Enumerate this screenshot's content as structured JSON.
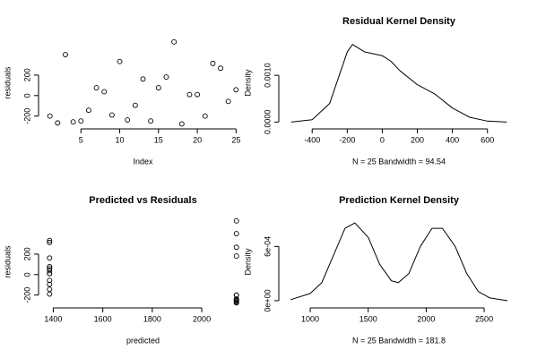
{
  "chart_data": [
    {
      "type": "scatter",
      "x_label": "Index",
      "y_label": "residuals",
      "x": [
        1,
        2,
        3,
        4,
        5,
        6,
        7,
        8,
        9,
        10,
        11,
        12,
        13,
        14,
        15,
        16,
        17,
        18,
        19,
        20,
        21,
        22,
        23,
        24,
        25
      ],
      "values": [
        -200,
        -267,
        400,
        -257,
        -248,
        -143,
        76,
        38,
        -190,
        333,
        -238,
        -95,
        162,
        -248,
        76,
        181,
        524,
        -276,
        10,
        10,
        -200,
        314,
        267,
        -57,
        57
      ],
      "xlim": [
        0,
        26
      ],
      "xticks": [
        5,
        10,
        15,
        20,
        25
      ],
      "ylim": [
        -290,
        540
      ],
      "yticks": [
        -200,
        0,
        200
      ],
      "color": "#000000"
    },
    {
      "type": "line",
      "title": "Residual Kernel Density",
      "x_label": "N = 25   Bandwidth = 94.54",
      "y_label": "Density",
      "x": [
        -520,
        -400,
        -300,
        -200,
        -170,
        -100,
        0,
        50,
        100,
        200,
        300,
        400,
        500,
        600,
        710
      ],
      "values": [
        0,
        5e-05,
        0.0004,
        0.0015,
        0.00166,
        0.0015,
        0.00142,
        0.0013,
        0.0011,
        0.0008,
        0.0006,
        0.0003,
        0.0001,
        2e-05,
        0
      ],
      "xlim": [
        -570,
        760
      ],
      "xticks": [
        -400,
        -200,
        0,
        200,
        400,
        600
      ],
      "ylim": [
        -7e-05,
        0.00175
      ],
      "yticks": [
        {
          "value": 0,
          "label": "0.0000"
        },
        {
          "value": 0.001,
          "label": "0.0010"
        }
      ],
      "color": "#000000"
    },
    {
      "type": "scatter",
      "title": "Predicted vs Residuals",
      "x_label": "predicted",
      "y_label": "residuals",
      "x": [
        2140,
        2140,
        2140,
        2140,
        2140,
        1385,
        1385,
        1385,
        1385,
        1385,
        2140,
        1385,
        1385,
        2140,
        1385,
        2140,
        2140,
        2140,
        1385,
        1385,
        2140,
        1385,
        2140,
        1385,
        1385
      ],
      "values": [
        -200,
        -267,
        400,
        -257,
        -248,
        -143,
        76,
        38,
        -190,
        333,
        -238,
        -95,
        162,
        -248,
        76,
        181,
        524,
        -276,
        10,
        10,
        -200,
        314,
        267,
        -57,
        57
      ],
      "xlim": [
        1355,
        2170
      ],
      "xticks": [
        1400,
        1600,
        1800,
        2000
      ],
      "ylim": [
        -290,
        540
      ],
      "yticks": [
        -200,
        0,
        200
      ],
      "color": "#000000"
    },
    {
      "type": "line",
      "title": "Prediction Kernel Density",
      "x_label": "N = 25   Bandwidth = 181.8",
      "y_label": "Density",
      "x": [
        830,
        1000,
        1100,
        1200,
        1300,
        1385,
        1500,
        1600,
        1700,
        1760,
        1850,
        1950,
        2050,
        2140,
        2250,
        2350,
        2450,
        2550,
        2700
      ],
      "values": [
        1e-05,
        8e-05,
        0.0002,
        0.0005,
        0.0008,
        0.00086,
        0.0007,
        0.0004,
        0.00022,
        0.0002,
        0.0003,
        0.0006,
        0.0008,
        0.0008,
        0.0006,
        0.0003,
        0.0001,
        3e-05,
        0
      ],
      "xlim": [
        760,
        2770
      ],
      "xticks": [
        1000,
        1500,
        2000,
        2500
      ],
      "ylim": [
        -4e-05,
        0.0009
      ],
      "yticks": [
        {
          "value": 0,
          "label": "0e+00"
        },
        {
          "value": 0.0006,
          "label": "6e-04"
        }
      ],
      "color": "#000000"
    }
  ]
}
